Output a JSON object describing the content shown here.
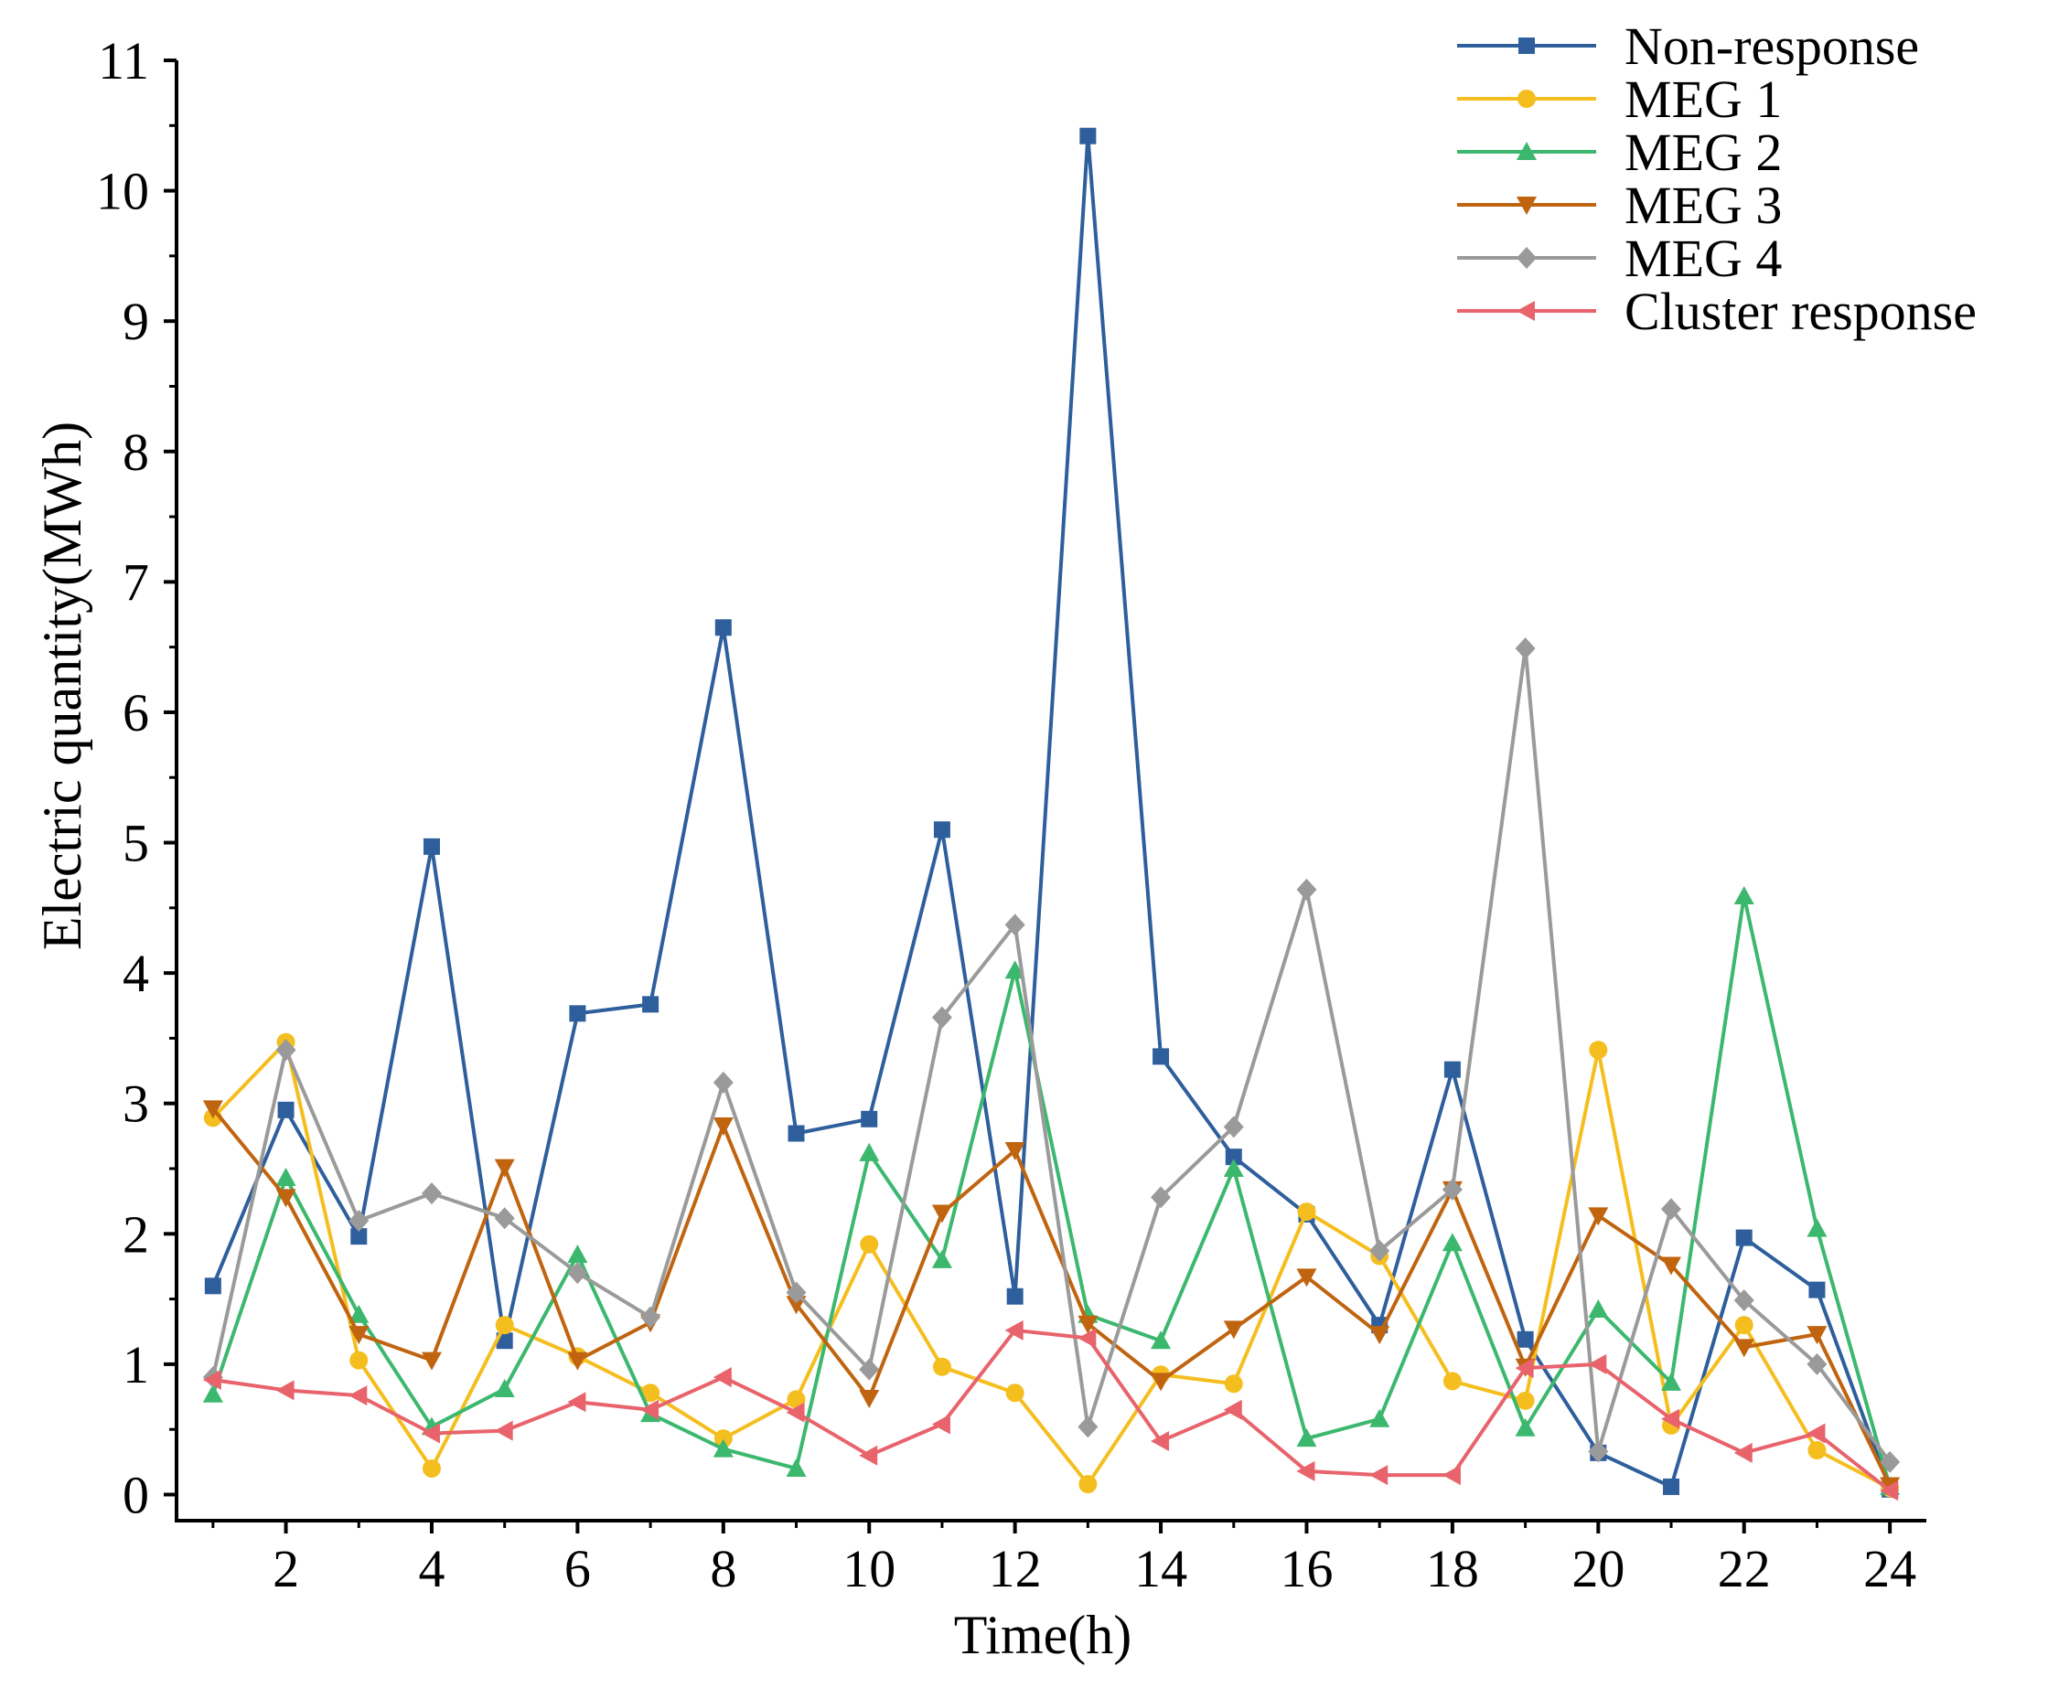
{
  "chart_data": {
    "type": "line",
    "title": "",
    "xlabel": "Time(h)",
    "ylabel": "Electric quantity(MWh)",
    "x": [
      1,
      2,
      3,
      4,
      5,
      6,
      7,
      8,
      9,
      10,
      11,
      12,
      13,
      14,
      15,
      16,
      17,
      18,
      19,
      20,
      21,
      22,
      23,
      24
    ],
    "x_ticks": [
      2,
      4,
      6,
      8,
      10,
      12,
      14,
      16,
      18,
      20,
      22,
      24
    ],
    "xlim": [
      0.5,
      24.5
    ],
    "ylim": [
      -0.2,
      11
    ],
    "y_ticks": [
      0,
      1,
      2,
      3,
      4,
      5,
      6,
      7,
      8,
      9,
      10,
      11
    ],
    "grid": false,
    "legend_position": "top-right",
    "series": [
      {
        "name": "Non-response",
        "color": "#2E5F9C",
        "marker": "square",
        "values": [
          1.6,
          2.95,
          1.98,
          4.97,
          1.18,
          3.69,
          3.76,
          6.65,
          2.77,
          2.88,
          5.1,
          1.52,
          10.42,
          3.36,
          2.59,
          2.15,
          1.3,
          3.26,
          1.19,
          0.32,
          0.06,
          1.97,
          1.57,
          0.04
        ]
      },
      {
        "name": "MEG 1",
        "color": "#F5BE1F",
        "marker": "circle",
        "values": [
          2.89,
          3.47,
          1.03,
          0.2,
          1.3,
          1.06,
          0.78,
          0.43,
          0.73,
          1.92,
          0.98,
          0.78,
          0.08,
          0.92,
          0.85,
          2.17,
          1.83,
          0.87,
          0.72,
          3.41,
          0.53,
          1.3,
          0.34,
          0.05
        ]
      },
      {
        "name": "MEG 2",
        "color": "#3CB86E",
        "marker": "triangle-up",
        "values": [
          0.77,
          2.43,
          1.38,
          0.52,
          0.81,
          1.84,
          0.62,
          0.35,
          0.2,
          2.62,
          1.8,
          4.02,
          1.38,
          1.18,
          2.5,
          0.43,
          0.58,
          1.93,
          0.51,
          1.42,
          0.86,
          4.59,
          2.04,
          0.06
        ]
      },
      {
        "name": "MEG 3",
        "color": "#C0640F",
        "marker": "triangle-down",
        "values": [
          2.96,
          2.28,
          1.23,
          1.03,
          2.51,
          1.03,
          1.32,
          2.83,
          1.46,
          0.74,
          2.16,
          2.64,
          1.31,
          0.87,
          1.27,
          1.67,
          1.23,
          2.34,
          0.98,
          2.14,
          1.76,
          1.13,
          1.23,
          0.07
        ]
      },
      {
        "name": "MEG 4",
        "color": "#9A9A9A",
        "marker": "diamond",
        "values": [
          0.9,
          3.41,
          2.1,
          2.31,
          2.12,
          1.7,
          1.36,
          3.16,
          1.55,
          0.96,
          3.66,
          4.37,
          0.52,
          2.28,
          2.82,
          4.64,
          1.87,
          2.34,
          6.49,
          0.33,
          2.19,
          1.49,
          1.0,
          0.25
        ]
      },
      {
        "name": "Cluster response",
        "color": "#E8636B",
        "marker": "triangle-left",
        "values": [
          0.88,
          0.8,
          0.76,
          0.47,
          0.49,
          0.71,
          0.65,
          0.9,
          0.63,
          0.3,
          0.54,
          1.26,
          1.2,
          0.41,
          0.65,
          0.18,
          0.15,
          0.15,
          0.97,
          1.0,
          0.58,
          0.32,
          0.47,
          0.03
        ]
      }
    ]
  }
}
